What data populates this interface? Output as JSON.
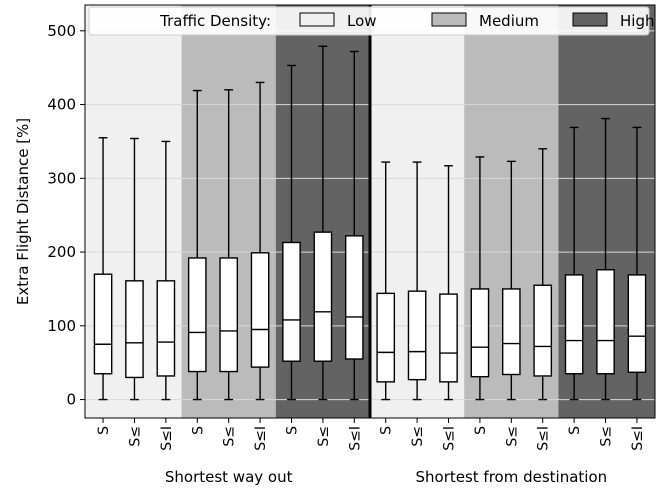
{
  "chart_data": {
    "type": "box",
    "ylabel": "Extra Flight Distance [%]",
    "ylim": [
      -25,
      535
    ],
    "yticks": [
      0,
      100,
      200,
      300,
      400,
      500
    ],
    "grid": true,
    "legend": {
      "title": "Traffic Density:",
      "placement": "top",
      "entries": [
        {
          "label": "Low",
          "color": "#f0f0f0"
        },
        {
          "label": "Medium",
          "color": "#bbbbbb"
        },
        {
          "label": "High",
          "color": "#636363"
        }
      ]
    },
    "groups": [
      "Shortest way out",
      "Shortest from destination"
    ],
    "density_levels": [
      "Low",
      "Medium",
      "High"
    ],
    "category_labels": [
      "S",
      "S≤",
      "S≤I"
    ],
    "series": [
      {
        "group": "Shortest way out",
        "density": "Low",
        "boxes": [
          {
            "label": "S",
            "min": 0,
            "q1": 35,
            "median": 75,
            "q3": 170,
            "max": 355
          },
          {
            "label": "S≤",
            "min": 0,
            "q1": 30,
            "median": 77,
            "q3": 161,
            "max": 354
          },
          {
            "label": "S≤I",
            "min": 0,
            "q1": 32,
            "median": 78,
            "q3": 161,
            "max": 350
          }
        ]
      },
      {
        "group": "Shortest way out",
        "density": "Medium",
        "boxes": [
          {
            "label": "S",
            "min": 0,
            "q1": 38,
            "median": 91,
            "q3": 192,
            "max": 419
          },
          {
            "label": "S≤",
            "min": 0,
            "q1": 38,
            "median": 93,
            "q3": 192,
            "max": 420
          },
          {
            "label": "S≤I",
            "min": 0,
            "q1": 44,
            "median": 95,
            "q3": 199,
            "max": 430
          }
        ]
      },
      {
        "group": "Shortest way out",
        "density": "High",
        "boxes": [
          {
            "label": "S",
            "min": 0,
            "q1": 52,
            "median": 108,
            "q3": 213,
            "max": 453
          },
          {
            "label": "S≤",
            "min": 0,
            "q1": 52,
            "median": 119,
            "q3": 227,
            "max": 479
          },
          {
            "label": "S≤I",
            "min": 0,
            "q1": 55,
            "median": 112,
            "q3": 222,
            "max": 472
          }
        ]
      },
      {
        "group": "Shortest from destination",
        "density": "Low",
        "boxes": [
          {
            "label": "S",
            "min": 0,
            "q1": 24,
            "median": 64,
            "q3": 144,
            "max": 322
          },
          {
            "label": "S≤",
            "min": 0,
            "q1": 27,
            "median": 65,
            "q3": 147,
            "max": 322
          },
          {
            "label": "S≤I",
            "min": 0,
            "q1": 24,
            "median": 63,
            "q3": 143,
            "max": 317
          }
        ]
      },
      {
        "group": "Shortest from destination",
        "density": "Medium",
        "boxes": [
          {
            "label": "S",
            "min": 0,
            "q1": 31,
            "median": 71,
            "q3": 150,
            "max": 329
          },
          {
            "label": "S≤",
            "min": 0,
            "q1": 34,
            "median": 76,
            "q3": 150,
            "max": 323
          },
          {
            "label": "S≤I",
            "min": 0,
            "q1": 32,
            "median": 72,
            "q3": 155,
            "max": 340
          }
        ]
      },
      {
        "group": "Shortest from destination",
        "density": "High",
        "boxes": [
          {
            "label": "S",
            "min": 0,
            "q1": 35,
            "median": 80,
            "q3": 169,
            "max": 369
          },
          {
            "label": "S≤",
            "min": 0,
            "q1": 35,
            "median": 80,
            "q3": 176,
            "max": 381
          },
          {
            "label": "S≤I",
            "min": 0,
            "q1": 37,
            "median": 86,
            "q3": 169,
            "max": 369
          }
        ]
      }
    ]
  }
}
